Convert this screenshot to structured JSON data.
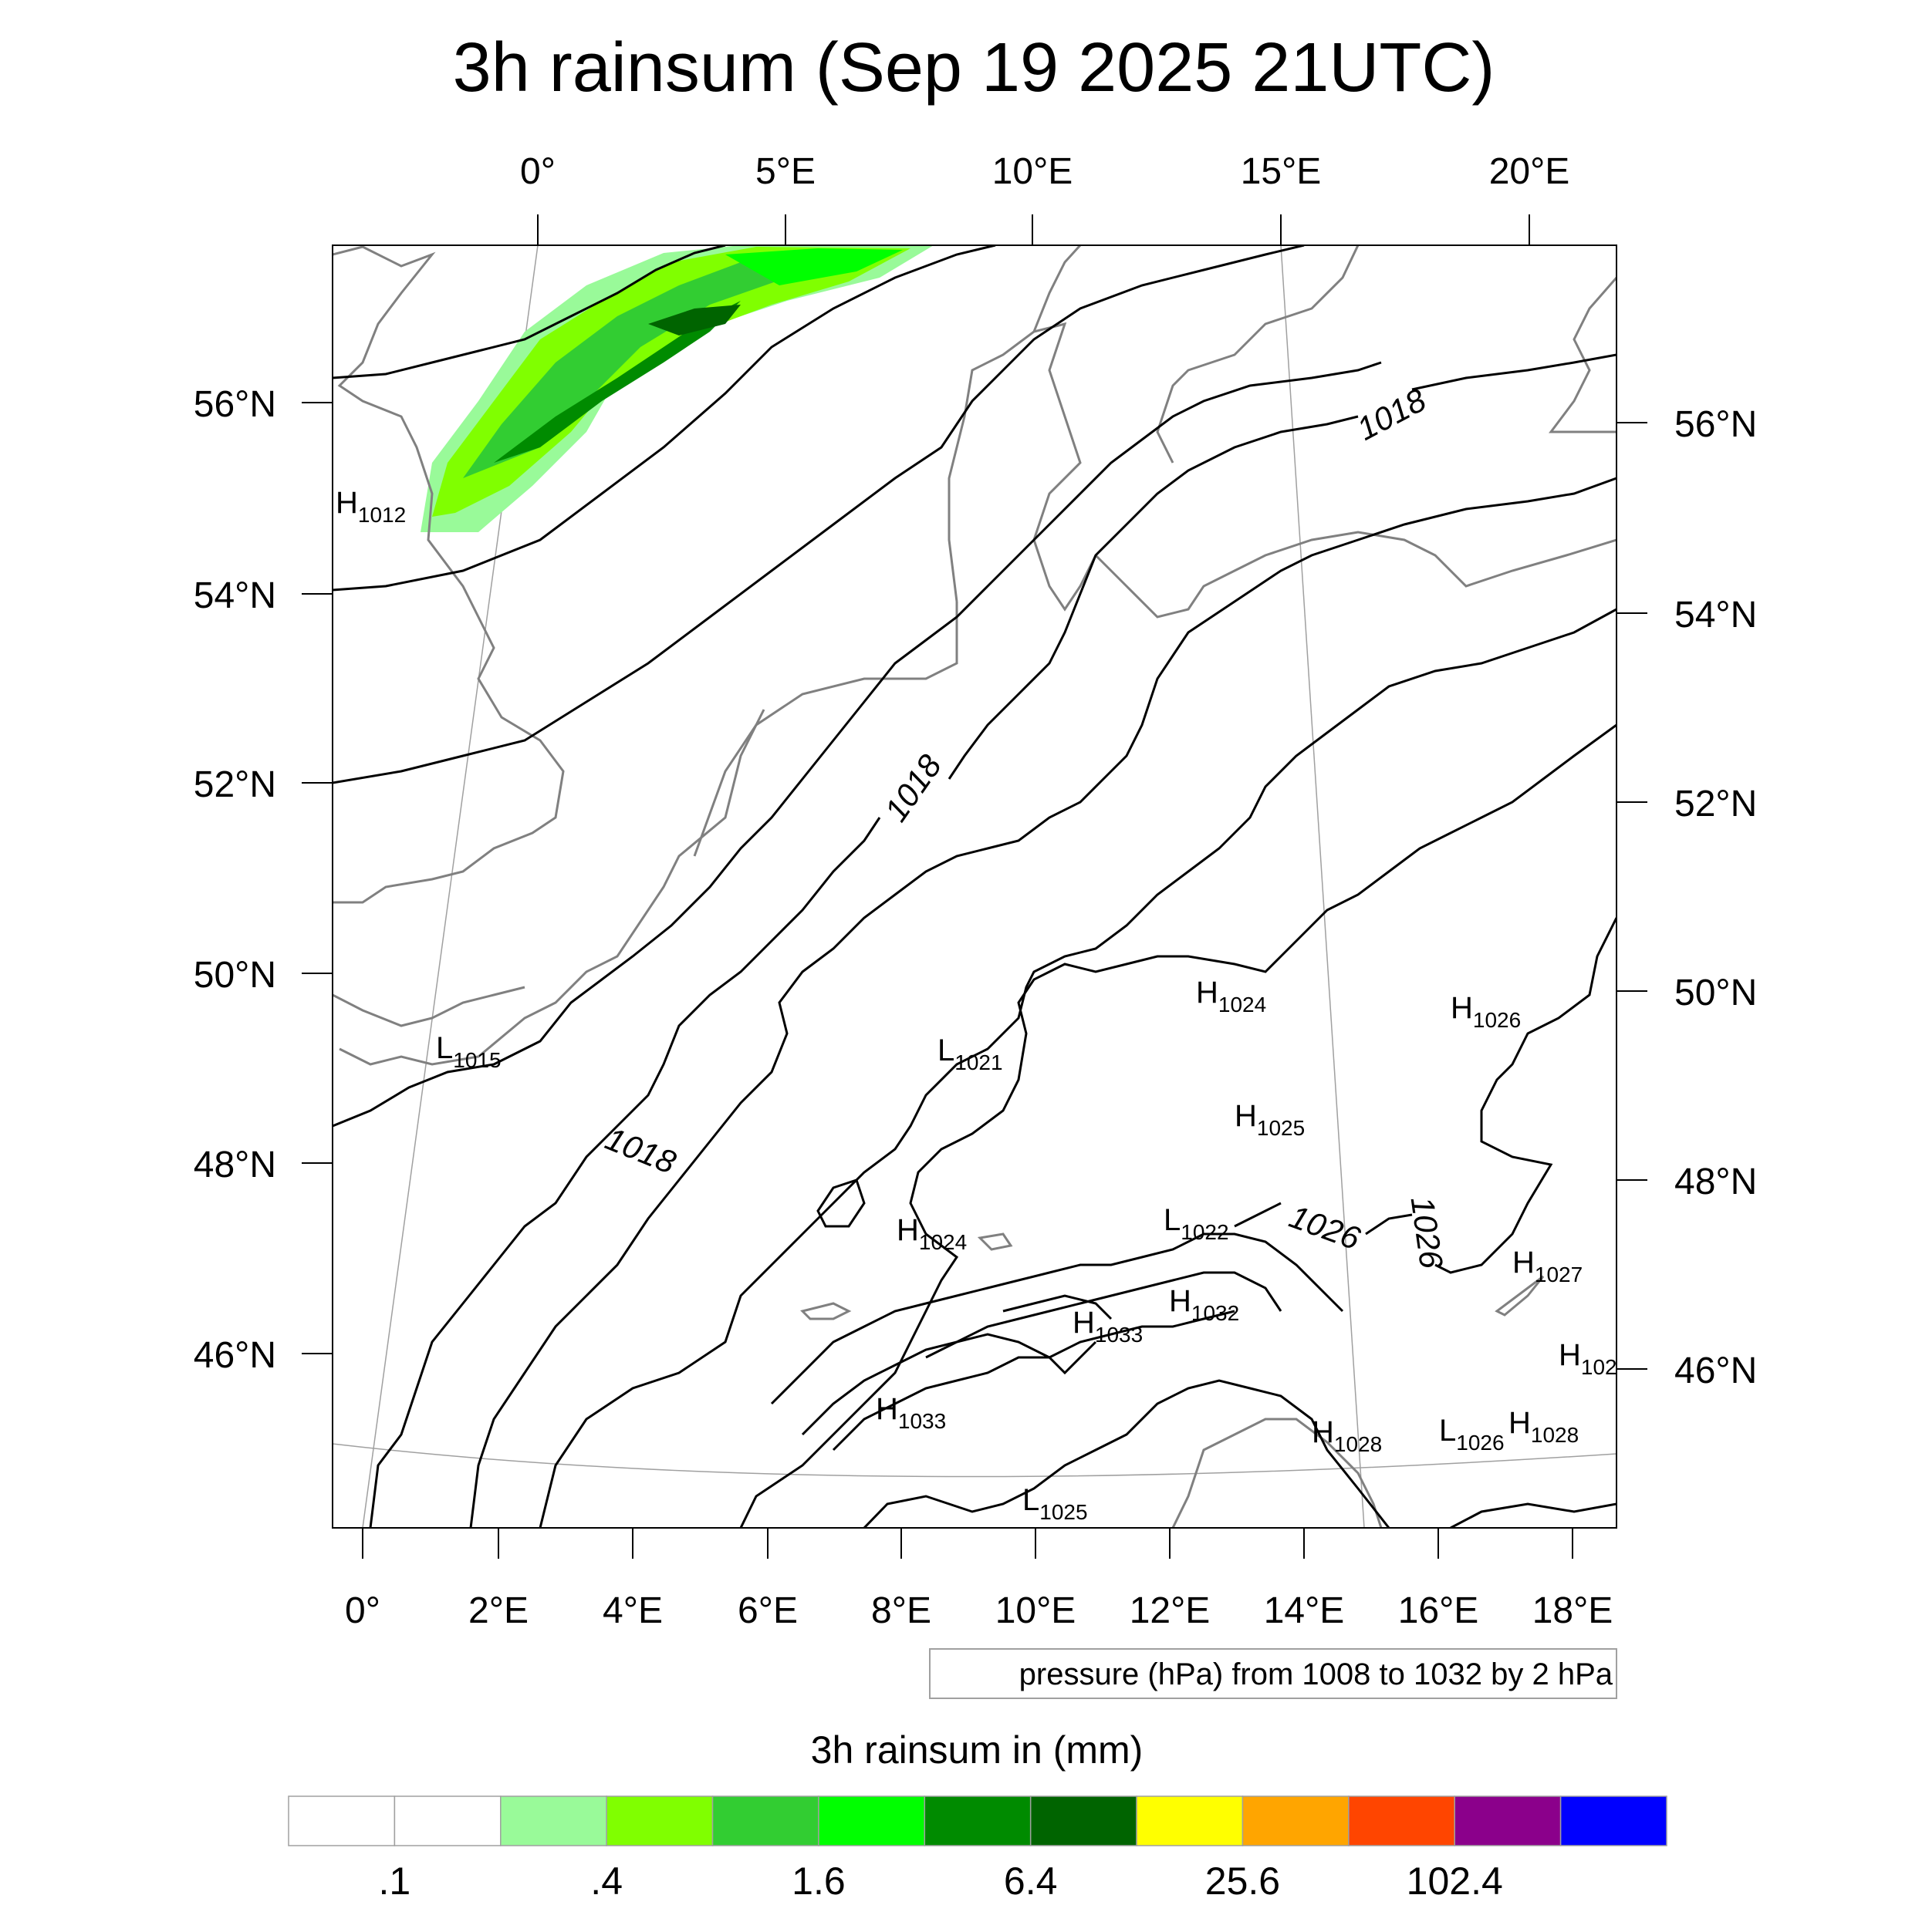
{
  "title": "3h rainsum (Sep 19 2025 21UTC)",
  "top_lon_ticks": [
    "0°",
    "5°E",
    "10°E",
    "15°E",
    "20°E"
  ],
  "bottom_lon_ticks": [
    "0°",
    "2°E",
    "4°E",
    "6°E",
    "8°E",
    "10°E",
    "12°E",
    "14°E",
    "16°E",
    "18°E"
  ],
  "left_lat_ticks": [
    "56°N",
    "54°N",
    "52°N",
    "50°N",
    "48°N",
    "46°N"
  ],
  "right_lat_ticks": [
    "56°N",
    "54°N",
    "52°N",
    "50°N",
    "48°N",
    "46°N"
  ],
  "isobar_labels": [
    "1018",
    "1018",
    "1018",
    "1026",
    "1026"
  ],
  "pressure_centers": [
    {
      "type": "H",
      "value": "1012"
    },
    {
      "type": "L",
      "value": "1015"
    },
    {
      "type": "L",
      "value": "1021"
    },
    {
      "type": "H",
      "value": "1024"
    },
    {
      "type": "H",
      "value": "1026"
    },
    {
      "type": "H",
      "value": "1025"
    },
    {
      "type": "H",
      "value": "1024"
    },
    {
      "type": "L",
      "value": "1022"
    },
    {
      "type": "H",
      "value": "1027"
    },
    {
      "type": "H",
      "value": "1032"
    },
    {
      "type": "H",
      "value": "1033"
    },
    {
      "type": "H",
      "value": "102"
    },
    {
      "type": "H",
      "value": "1033"
    },
    {
      "type": "H",
      "value": "1028"
    },
    {
      "type": "L",
      "value": "1026"
    },
    {
      "type": "H",
      "value": "1028"
    },
    {
      "type": "L",
      "value": "1025"
    }
  ],
  "contour_note": "pressure (hPa) from 1008 to 1032 by 2 hPa",
  "legend": {
    "title": "3h rainsum in (mm)",
    "colors": [
      "#ffffff",
      "#ffffff",
      "#99fa99",
      "#80ff00",
      "#32cd32",
      "#00ff00",
      "#008b00",
      "#006400",
      "#ffff00",
      "#ffa500",
      "#ff4500",
      "#8b008b",
      "#0000ff"
    ],
    "labels": [
      ".1",
      ".4",
      "1.6",
      "6.4",
      "25.6",
      "102.4"
    ]
  },
  "colors": {
    "rain_light": "#99fa99",
    "rain_chartreuse": "#80ff00",
    "rain_lime": "#32cd32",
    "rain_green": "#00ff00",
    "rain_dark": "#008b00",
    "rain_darkest": "#006400",
    "coast": "#808080",
    "isobar": "#000000"
  }
}
